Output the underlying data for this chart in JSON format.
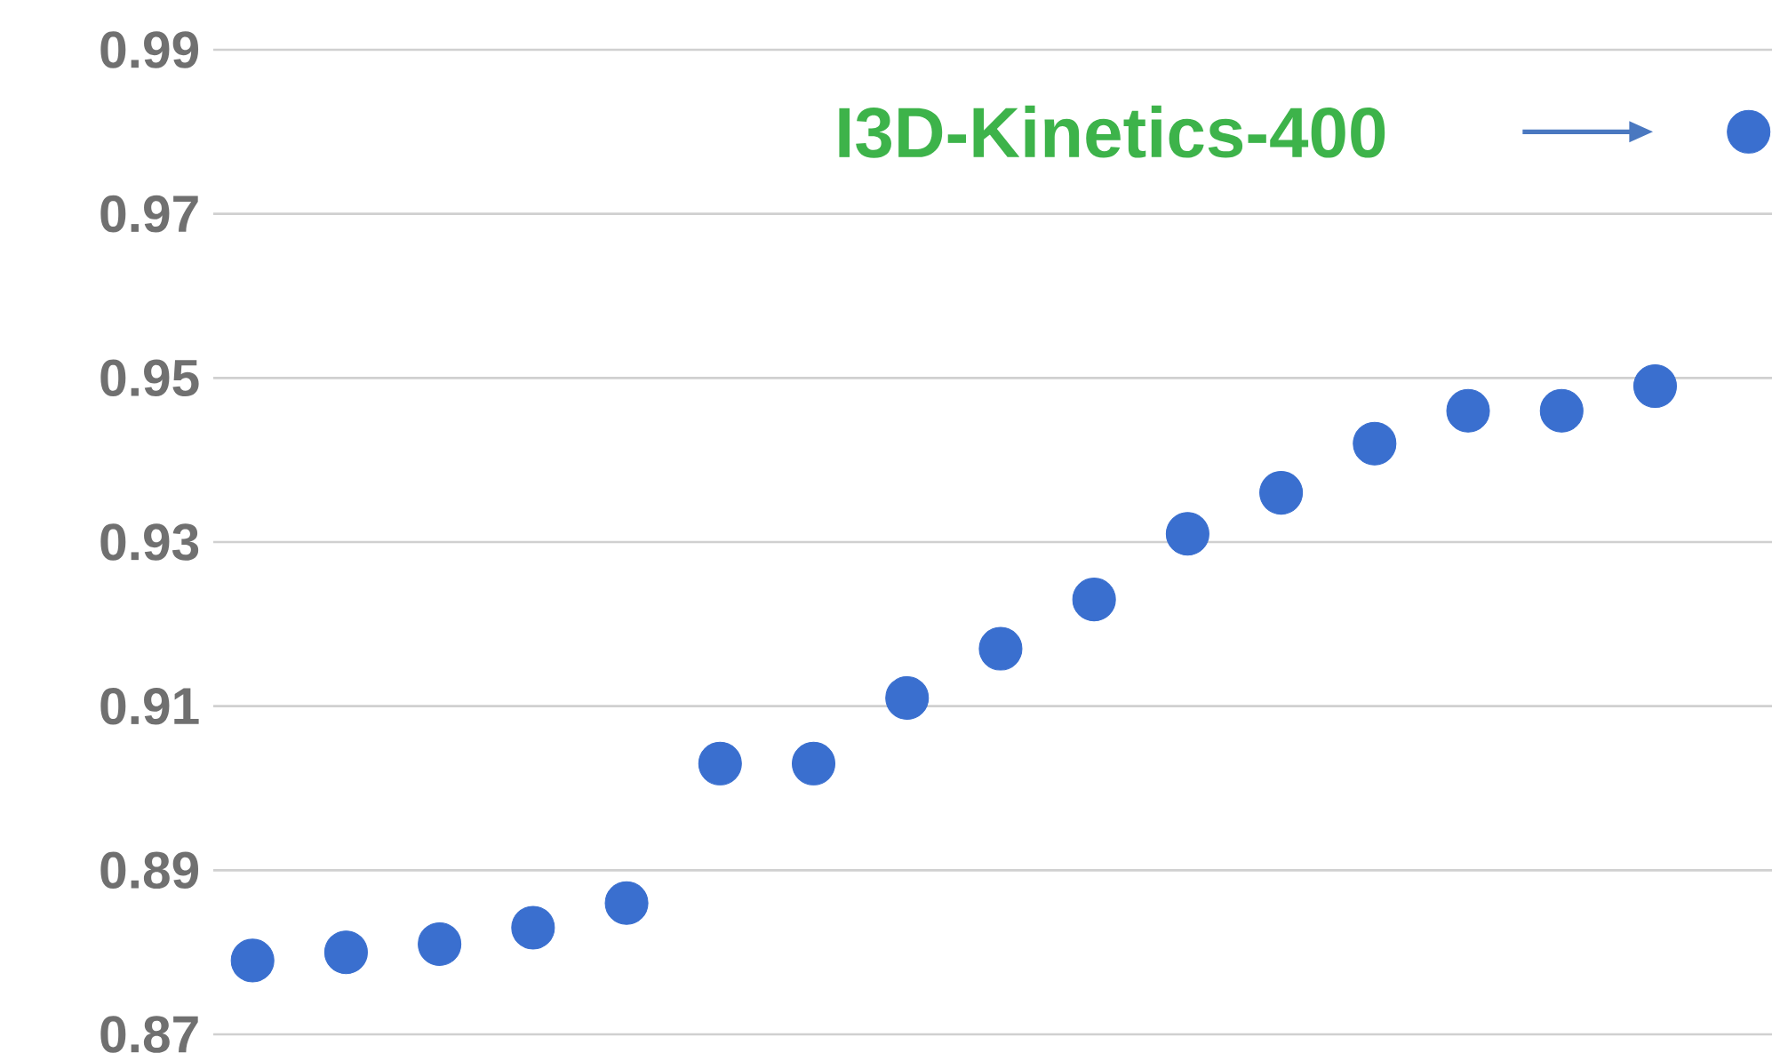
{
  "chart_data": {
    "type": "scatter",
    "categories": [
      null,
      null,
      null,
      null,
      null,
      null,
      null,
      null,
      null,
      null,
      null,
      null,
      null,
      null,
      null,
      null,
      null
    ],
    "values": [
      0.879,
      0.88,
      0.881,
      0.883,
      0.886,
      0.903,
      0.903,
      0.911,
      0.917,
      0.923,
      0.931,
      0.936,
      0.942,
      0.946,
      0.946,
      0.949,
      0.98
    ],
    "color": "#3a6fcf",
    "ylim": [
      0.87,
      0.99
    ],
    "yticks": [
      0.87,
      0.89,
      0.91,
      0.93,
      0.95,
      0.97,
      0.99
    ],
    "grid": "y",
    "annotations": [
      "I3D-Kinetics-400"
    ]
  }
}
